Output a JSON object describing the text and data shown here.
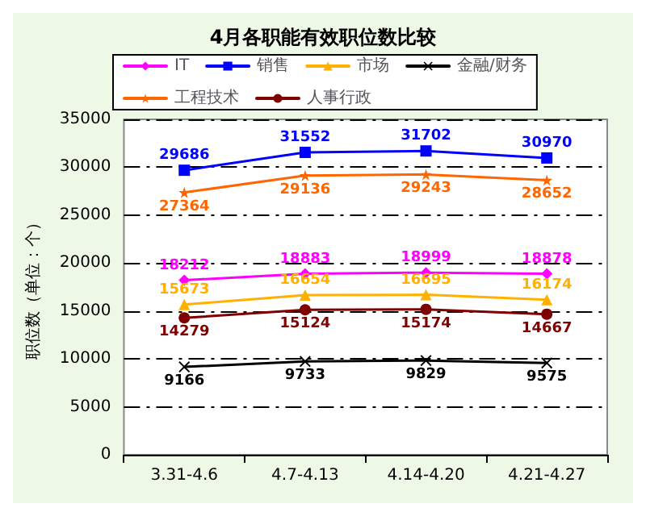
{
  "chart_data": {
    "type": "line",
    "title": "4月各职能有效职位数比较",
    "ylabel": "职位数（单位：个）",
    "categories": [
      "3.31-4.6",
      "4.7-4.13",
      "4.14-4.20",
      "4.21-4.27"
    ],
    "series": [
      {
        "name": "IT",
        "color": "#ff00ff",
        "marker": "diamond",
        "values": [
          18212,
          18883,
          18999,
          18878
        ]
      },
      {
        "name": "销售",
        "color": "#0000ff",
        "marker": "square",
        "values": [
          29686,
          31552,
          31702,
          30970
        ]
      },
      {
        "name": "市场",
        "color": "#ffb000",
        "marker": "triangle",
        "values": [
          15673,
          16654,
          16695,
          16174
        ]
      },
      {
        "name": "金融/财务",
        "color": "#000000",
        "marker": "cross",
        "values": [
          9166,
          9733,
          9829,
          9575
        ]
      },
      {
        "name": "工程技术",
        "color": "#ff6600",
        "marker": "star",
        "values": [
          27364,
          29136,
          29243,
          28652
        ]
      },
      {
        "name": "人事行政",
        "color": "#800000",
        "marker": "circle",
        "values": [
          14279,
          15124,
          15174,
          14667
        ]
      }
    ],
    "ylim": [
      0,
      35000
    ],
    "yticks": [
      0,
      5000,
      10000,
      15000,
      20000,
      25000,
      30000,
      35000
    ],
    "grid": "y",
    "legend": "top",
    "data_labels": true,
    "line_style": "solid"
  }
}
